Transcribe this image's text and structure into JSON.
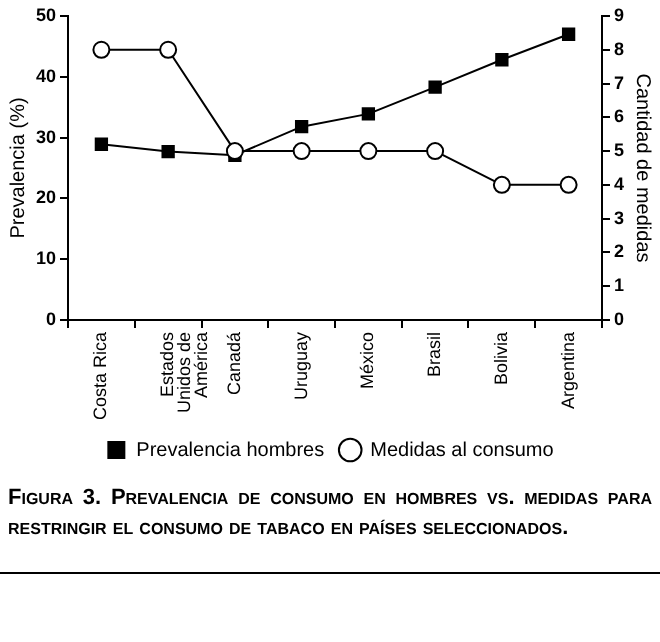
{
  "chart_data": {
    "type": "line",
    "title": "Figura 3. Prevalencia de consumo en hombres vs. medidas para restringir el consumo de tabaco en países seleccionados.",
    "categories": [
      "Costa Rica",
      "Estados Unidos de América",
      "Canadá",
      "Uruguay",
      "México",
      "Brasil",
      "Bolivia",
      "Argentina"
    ],
    "series": [
      {
        "name": "Prevalencia hombres",
        "color": "#000000",
        "marker": "square",
        "values": [
          28.9,
          27.7,
          27.1,
          31.8,
          33.9,
          38.3,
          42.8,
          47.0
        ]
      },
      {
        "name": "Medidas al consumo",
        "color": "#000000",
        "marker": "circle",
        "axis": "y2",
        "values": [
          8,
          8,
          5,
          5,
          5,
          5,
          4,
          4
        ]
      }
    ],
    "ylabel": "Prevalencia (%)",
    "y2label": "Cantidad de medidas",
    "ylim": [
      0,
      50
    ],
    "yticks": [
      0,
      10,
      20,
      30,
      40,
      50
    ],
    "y2lim": [
      0,
      9
    ],
    "y2ticks": [
      0,
      1,
      2,
      3,
      4,
      5,
      6,
      7,
      8,
      9
    ],
    "grid": false,
    "legend": "bottom"
  }
}
